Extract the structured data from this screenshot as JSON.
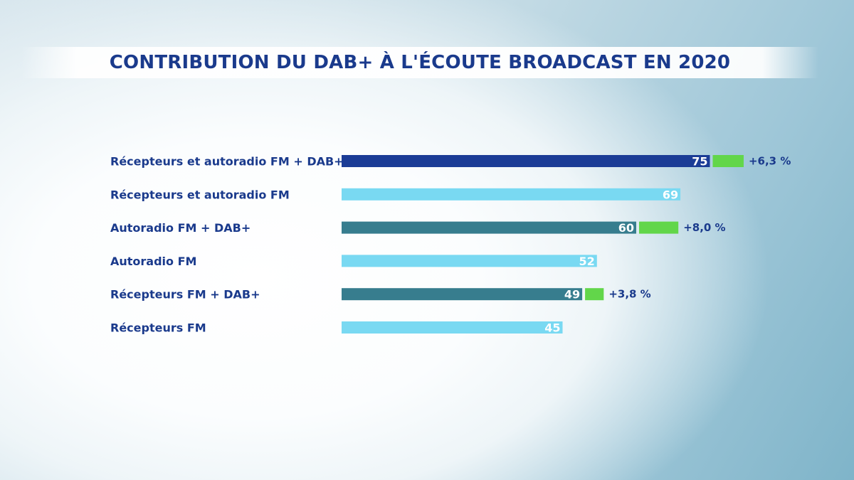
{
  "chart_data": {
    "type": "bar",
    "orientation": "horizontal",
    "title": "CONTRIBUTION DU DAB+ À L'ÉCOUTE BROADCAST EN 2020",
    "categories": [
      "Récepteurs et autoradio FM + DAB+",
      "Récepteurs et autoradio FM",
      "Autoradio FM + DAB+",
      "Autoradio FM",
      "Récepteurs FM + DAB+",
      "Récepteurs FM"
    ],
    "values": [
      75,
      69,
      60,
      52,
      49,
      45
    ],
    "value_labels": [
      "75",
      "69",
      "60",
      "52",
      "49",
      "45"
    ],
    "increments": [
      6.3,
      null,
      8.0,
      null,
      3.8,
      null
    ],
    "increment_labels": [
      "+6,3 %",
      "",
      "+8,0 %",
      "",
      "+3,8 %",
      ""
    ],
    "bar_colors": [
      "#1b3c96",
      "#79d9f2",
      "#377d8e",
      "#79d9f2",
      "#377d8e",
      "#79d9f2"
    ],
    "increment_color": "#62d64a",
    "xlim": [
      0,
      100
    ],
    "grid": false,
    "legend": "none"
  }
}
